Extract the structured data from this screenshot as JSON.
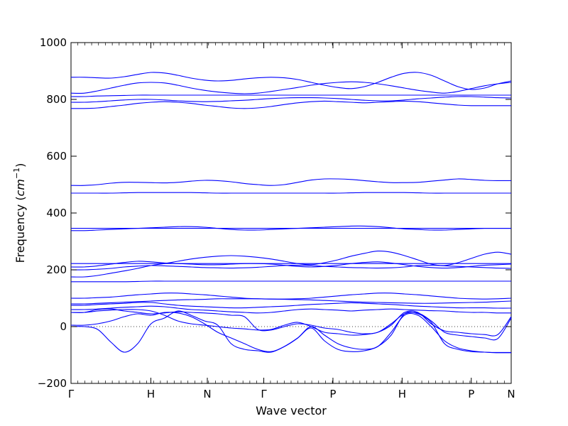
{
  "chart_data": {
    "type": "line",
    "title": "",
    "xlabel": "Wave vector",
    "ylabel_text": "Frequency (",
    "ylabel_unit": "cm",
    "ylabel_exp": "−1",
    "ylabel_close": ")",
    "ylim": [
      -200,
      1000
    ],
    "yticks": [
      -200,
      0,
      200,
      400,
      600,
      800,
      1000
    ],
    "ytick_labels": [
      "−200",
      "0",
      "200",
      "400",
      "600",
      "800",
      "1000"
    ],
    "kpoints": [
      "Γ",
      "H",
      "N",
      "Γ",
      "P",
      "H",
      "P",
      "N"
    ],
    "kpath": [
      0,
      1.0,
      1.7071,
      2.4142,
      3.2802,
      4.1463,
      5.0124,
      5.5124
    ],
    "zero_line": true,
    "color": "#0000ff",
    "series_shapes": [
      {
        "name": "",
        "values": [
          0,
          0,
          -10,
          -55,
          -90,
          -60,
          10,
          30,
          55,
          40,
          20,
          5,
          -60,
          -80,
          -85,
          -90,
          -70,
          -40,
          -5,
          -50,
          -80,
          -88,
          -85,
          -70,
          -30,
          45,
          45,
          15,
          -60,
          -80,
          -88,
          -90,
          -92,
          -92
        ]
      },
      {
        "name": "",
        "values": [
          5,
          5,
          10,
          20,
          35,
          45,
          40,
          50,
          48,
          35,
          10,
          -20,
          -40,
          -60,
          -80,
          -88,
          -70,
          -40,
          0,
          -30,
          -60,
          -75,
          -80,
          -70,
          -20,
          40,
          40,
          0,
          -50,
          -75,
          -85,
          -90,
          -91,
          -91
        ]
      },
      {
        "name": "",
        "values": [
          50,
          50,
          60,
          62,
          55,
          50,
          45,
          48,
          52,
          50,
          48,
          45,
          40,
          35,
          -10,
          -12,
          0,
          10,
          5,
          -5,
          -10,
          -20,
          -25,
          -20,
          10,
          45,
          48,
          20,
          -20,
          -30,
          -35,
          -40,
          -42,
          30
        ]
      },
      {
        "name": "",
        "values": [
          50,
          50,
          55,
          58,
          60,
          60,
          55,
          40,
          20,
          10,
          5,
          0,
          -5,
          -8,
          -12,
          -10,
          5,
          15,
          0,
          -20,
          -25,
          -30,
          -28,
          -20,
          5,
          50,
          50,
          10,
          -15,
          -20,
          -25,
          -28,
          -28,
          35
        ]
      },
      {
        "name": "",
        "values": [
          60,
          60,
          62,
          65,
          68,
          70,
          72,
          70,
          65,
          60,
          58,
          55,
          52,
          50,
          48,
          50,
          55,
          60,
          62,
          60,
          58,
          55,
          58,
          60,
          62,
          60,
          58,
          56,
          55,
          52,
          50,
          50,
          48,
          48
        ]
      },
      {
        "name": "",
        "values": [
          75,
          75,
          78,
          80,
          82,
          85,
          85,
          80,
          75,
          72,
          70,
          68,
          66,
          66,
          68,
          70,
          72,
          75,
          78,
          80,
          82,
          84,
          82,
          80,
          78,
          75,
          72,
          70,
          68,
          66,
          66,
          66,
          65,
          65
        ]
      },
      {
        "name": "",
        "values": [
          80,
          80,
          82,
          84,
          86,
          88,
          90,
          92,
          94,
          95,
          96,
          98,
          98,
          98,
          98,
          97,
          96,
          95,
          94,
          92,
          90,
          88,
          86,
          85,
          84,
          83,
          82,
          82,
          83,
          84,
          85,
          86,
          88,
          90
        ]
      },
      {
        "name": "",
        "values": [
          100,
          100,
          102,
          104,
          108,
          112,
          115,
          118,
          118,
          115,
          112,
          108,
          104,
          100,
          98,
          97,
          97,
          98,
          100,
          104,
          108,
          112,
          115,
          118,
          118,
          115,
          112,
          108,
          104,
          100,
          98,
          97,
          98,
          100
        ]
      },
      {
        "name": "",
        "values": [
          158,
          158,
          158,
          158,
          158,
          159,
          160,
          160,
          160,
          160,
          160,
          160,
          160,
          160,
          160,
          160,
          160,
          160,
          160,
          160,
          160,
          160,
          160,
          160,
          160,
          160,
          160,
          160,
          160,
          160,
          160,
          160,
          160,
          160
        ]
      },
      {
        "name": "",
        "values": [
          175,
          175,
          180,
          188,
          196,
          205,
          215,
          222,
          230,
          238,
          244,
          248,
          250,
          248,
          244,
          238,
          230,
          222,
          218,
          225,
          235,
          248,
          258,
          266,
          262,
          250,
          235,
          220,
          215,
          225,
          240,
          255,
          262,
          255
        ]
      },
      {
        "name": "",
        "values": [
          200,
          200,
          202,
          205,
          210,
          213,
          215,
          214,
          212,
          210,
          208,
          207,
          206,
          207,
          209,
          212,
          215,
          216,
          215,
          212,
          210,
          208,
          207,
          206,
          207,
          210,
          215,
          216,
          214,
          212,
          210,
          208,
          206,
          205
        ]
      },
      {
        "name": "",
        "values": [
          210,
          210,
          214,
          220,
          226,
          230,
          228,
          224,
          222,
          220,
          218,
          218,
          220,
          222,
          222,
          220,
          216,
          212,
          210,
          212,
          216,
          222,
          226,
          228,
          224,
          218,
          212,
          208,
          206,
          208,
          212,
          216,
          218,
          220
        ]
      },
      {
        "name": "",
        "values": [
          222,
          222,
          222,
          222,
          222,
          222,
          222,
          222,
          222,
          222,
          222,
          222,
          222,
          222,
          222,
          222,
          222,
          222,
          222,
          222,
          222,
          222,
          222,
          222,
          222,
          222,
          222,
          222,
          222,
          222,
          222,
          222,
          222,
          222
        ]
      },
      {
        "name": "",
        "values": [
          338,
          338,
          340,
          342,
          344,
          346,
          348,
          350,
          352,
          352,
          350,
          346,
          342,
          340,
          340,
          342,
          344,
          346,
          348,
          350,
          352,
          354,
          354,
          352,
          348,
          344,
          342,
          340,
          340,
          342,
          344,
          346,
          346,
          346
        ]
      },
      {
        "name": "",
        "values": [
          346,
          346,
          346,
          346,
          346,
          346,
          346,
          346,
          346,
          346,
          346,
          346,
          346,
          346,
          346,
          346,
          346,
          346,
          346,
          346,
          346,
          346,
          346,
          346,
          346,
          346,
          346,
          346,
          346,
          346,
          346,
          346,
          346,
          346
        ]
      },
      {
        "name": "",
        "values": [
          470,
          470,
          470,
          470,
          471,
          472,
          472,
          472,
          472,
          472,
          471,
          470,
          470,
          470,
          470,
          470,
          470,
          470,
          470,
          470,
          470,
          471,
          472,
          472,
          472,
          472,
          471,
          470,
          470,
          470,
          470,
          470,
          470,
          470
        ]
      },
      {
        "name": "",
        "values": [
          497,
          497,
          500,
          505,
          508,
          508,
          507,
          506,
          508,
          512,
          515,
          514,
          510,
          504,
          500,
          497,
          500,
          508,
          516,
          520,
          520,
          518,
          514,
          510,
          507,
          507,
          508,
          512,
          516,
          520,
          518,
          515,
          514,
          514
        ]
      },
      {
        "name": "",
        "values": [
          768,
          768,
          770,
          775,
          780,
          786,
          790,
          792,
          790,
          786,
          780,
          775,
          770,
          768,
          770,
          775,
          782,
          788,
          792,
          794,
          792,
          790,
          788,
          790,
          792,
          794,
          792,
          788,
          784,
          780,
          778,
          778,
          778,
          778
        ]
      },
      {
        "name": "",
        "values": [
          790,
          790,
          792,
          795,
          798,
          800,
          800,
          798,
          795,
          793,
          792,
          793,
          795,
          797,
          800,
          803,
          805,
          806,
          806,
          805,
          803,
          800,
          797,
          795,
          795,
          798,
          802,
          805,
          808,
          810,
          810,
          808,
          806,
          805
        ]
      },
      {
        "name": "",
        "values": [
          810,
          810,
          812,
          813,
          814,
          815,
          815,
          815,
          815,
          815,
          815,
          815,
          815,
          815,
          815,
          815,
          815,
          815,
          815,
          815,
          815,
          815,
          815,
          815,
          815,
          815,
          815,
          815,
          815,
          815,
          815,
          815,
          815,
          815
        ]
      },
      {
        "name": "",
        "values": [
          822,
          822,
          830,
          840,
          850,
          858,
          860,
          858,
          850,
          840,
          832,
          826,
          822,
          820,
          822,
          828,
          835,
          842,
          850,
          856,
          860,
          862,
          860,
          855,
          848,
          840,
          832,
          826,
          822,
          828,
          838,
          848,
          855,
          860
        ]
      },
      {
        "name": "",
        "values": [
          878,
          878,
          876,
          875,
          880,
          888,
          895,
          893,
          885,
          875,
          868,
          865,
          867,
          872,
          876,
          878,
          876,
          870,
          860,
          850,
          842,
          838,
          845,
          860,
          878,
          892,
          895,
          885,
          865,
          845,
          835,
          840,
          855,
          865
        ]
      }
    ]
  }
}
